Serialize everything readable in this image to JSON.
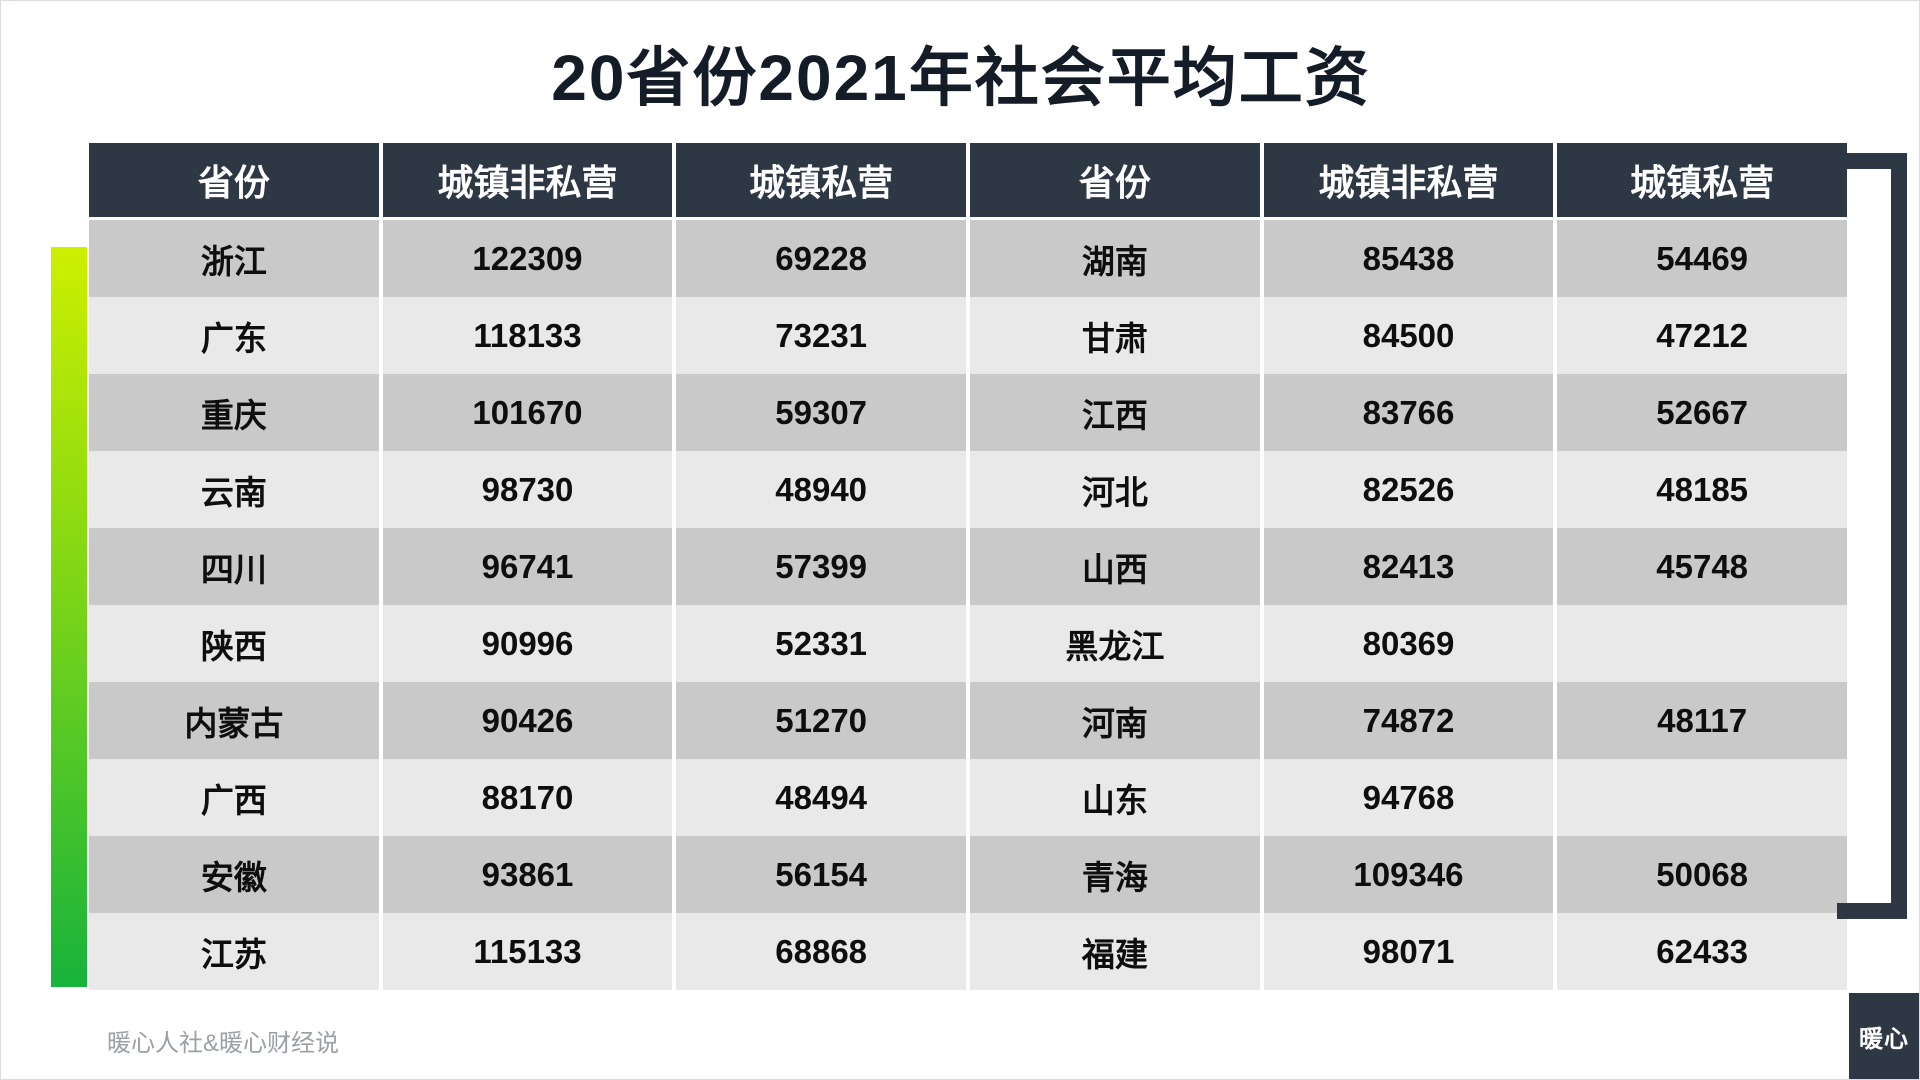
{
  "title": "20省份2021年社会平均工资",
  "chart_data": {
    "type": "table",
    "title": "20省份2021年社会平均工资",
    "columns": [
      "省份",
      "城镇非私营",
      "城镇私营",
      "省份",
      "城镇非私营",
      "城镇私营"
    ],
    "rows": [
      [
        "浙江",
        "122309",
        "69228",
        "湖南",
        "85438",
        "54469"
      ],
      [
        "广东",
        "118133",
        "73231",
        "甘肃",
        "84500",
        "47212"
      ],
      [
        "重庆",
        "101670",
        "59307",
        "江西",
        "83766",
        "52667"
      ],
      [
        "云南",
        "98730",
        "48940",
        "河北",
        "82526",
        "48185"
      ],
      [
        "四川",
        "96741",
        "57399",
        "山西",
        "82413",
        "45748"
      ],
      [
        "陕西",
        "90996",
        "52331",
        "黑龙江",
        "80369",
        ""
      ],
      [
        "内蒙古",
        "90426",
        "51270",
        "河南",
        "74872",
        "48117"
      ],
      [
        "广西",
        "88170",
        "48494",
        "山东",
        "94768",
        ""
      ],
      [
        "安徽",
        "93861",
        "56154",
        "青海",
        "109346",
        "50068"
      ],
      [
        "江苏",
        "115133",
        "68868",
        "福建",
        "98071",
        "62433"
      ]
    ],
    "layout": {
      "note": "two side-by-side province groups in one grid, alternating gray row bands"
    }
  },
  "footer": {
    "watermark": "暖心人社&暖心财经说",
    "badge": "暖心"
  },
  "colors": {
    "header_bg": "#2e3845",
    "row_odd": "#c9c9c9",
    "row_even": "#e9e9e9",
    "accent_gradient_top": "#cdef00",
    "accent_gradient_bottom": "#17b33c",
    "bracket": "#2e3845",
    "title_text": "#141c28"
  }
}
